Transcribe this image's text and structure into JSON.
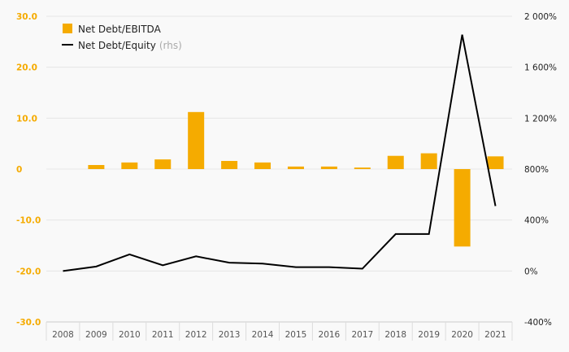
{
  "chart_data": {
    "type": "bar",
    "categories": [
      "2008",
      "2009",
      "2010",
      "2011",
      "2012",
      "2013",
      "2014",
      "2015",
      "2016",
      "2017",
      "2018",
      "2019",
      "2020",
      "2021"
    ],
    "series": [
      {
        "name": "Net Debt/EBITDA",
        "type": "bar",
        "axis": "left",
        "color": "#f5ab00",
        "values": [
          0,
          0.8,
          1.3,
          1.9,
          11.2,
          1.6,
          1.3,
          0.5,
          0.5,
          0.3,
          2.6,
          3.1,
          -15.2,
          2.5
        ]
      },
      {
        "name": "Net Debt/Equity",
        "name_suffix": "(rhs)",
        "type": "line",
        "axis": "right",
        "color": "#000000",
        "values": [
          0,
          35,
          130,
          45,
          115,
          65,
          58,
          30,
          30,
          18,
          290,
          290,
          1855,
          510
        ]
      }
    ],
    "y_left": {
      "min": -30,
      "max": 30,
      "ticks": [
        30,
        20,
        10,
        0,
        -10,
        -20,
        -30
      ],
      "labels": [
        "30.0",
        "20.0",
        "10.0",
        "0",
        "-10.0",
        "-20.0",
        "-30.0"
      ]
    },
    "y_right": {
      "min": -400,
      "max": 2000,
      "ticks": [
        2000,
        1600,
        1200,
        800,
        400,
        0,
        -400
      ],
      "labels": [
        "2 000%",
        "1 600%",
        "1 200%",
        "800%",
        "400%",
        "0%",
        "-400%"
      ]
    },
    "grid": true,
    "legend_position": "top-left"
  }
}
